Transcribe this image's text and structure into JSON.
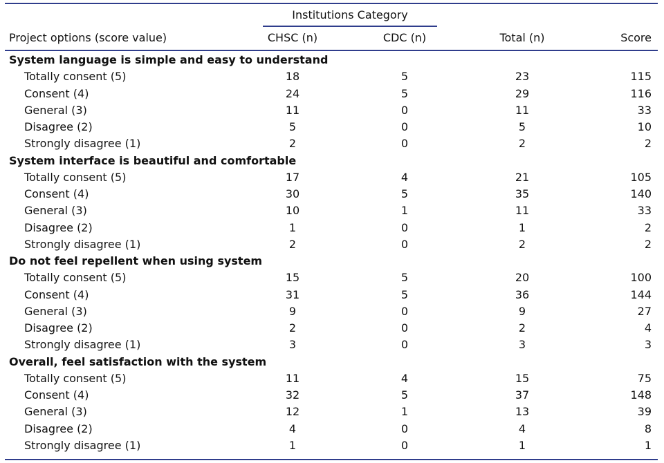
{
  "table": {
    "group_header": "Institutions Category",
    "columns": [
      "Project options (score value)",
      "CHSC (n)",
      "CDC (n)",
      "Total (n)",
      "Score"
    ],
    "sections": [
      {
        "title": "System language is simple and easy to understand",
        "rows": [
          [
            "Totally consent (5)",
            "18",
            "5",
            "23",
            "115"
          ],
          [
            "Consent (4)",
            "24",
            "5",
            "29",
            "116"
          ],
          [
            "General (3)",
            "11",
            "0",
            "11",
            "33"
          ],
          [
            "Disagree (2)",
            "5",
            "0",
            "5",
            "10"
          ],
          [
            "Strongly disagree (1)",
            "2",
            "0",
            "2",
            "2"
          ]
        ]
      },
      {
        "title": "System interface is beautiful and comfortable",
        "rows": [
          [
            "Totally consent (5)",
            "17",
            "4",
            "21",
            "105"
          ],
          [
            "Consent (4)",
            "30",
            "5",
            "35",
            "140"
          ],
          [
            "General (3)",
            "10",
            "1",
            "11",
            "33"
          ],
          [
            "Disagree (2)",
            "1",
            "0",
            "1",
            "2"
          ],
          [
            "Strongly disagree (1)",
            "2",
            "0",
            "2",
            "2"
          ]
        ]
      },
      {
        "title": "Do not feel repellent when using system",
        "rows": [
          [
            "Totally consent (5)",
            "15",
            "5",
            "20",
            "100"
          ],
          [
            "Consent (4)",
            "31",
            "5",
            "36",
            "144"
          ],
          [
            "General (3)",
            "9",
            "0",
            "9",
            "27"
          ],
          [
            "Disagree (2)",
            "2",
            "0",
            "2",
            "4"
          ],
          [
            "Strongly disagree (1)",
            "3",
            "0",
            "3",
            "3"
          ]
        ]
      },
      {
        "title": "Overall, feel satisfaction with the system",
        "rows": [
          [
            "Totally consent (5)",
            "11",
            "4",
            "15",
            "75"
          ],
          [
            "Consent (4)",
            "32",
            "5",
            "37",
            "148"
          ],
          [
            "General (3)",
            "12",
            "1",
            "13",
            "39"
          ],
          [
            "Disagree (2)",
            "4",
            "0",
            "4",
            "8"
          ],
          [
            "Strongly disagree (1)",
            "1",
            "0",
            "1",
            "1"
          ]
        ]
      }
    ]
  }
}
